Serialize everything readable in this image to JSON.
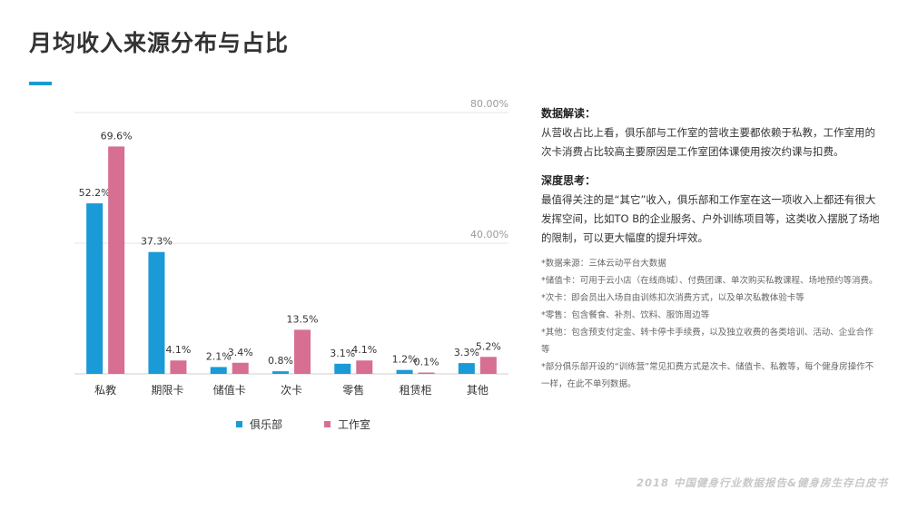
{
  "page": {
    "title": "月均收入来源分布与占比",
    "footer": "2018 中国健身行业数据报告&健身房生存白皮书"
  },
  "colors": {
    "accent": "#1a9ad6",
    "club": "#1a9ad6",
    "studio": "#d66f91",
    "gridline": "#e6e6e6",
    "axis_label": "#9a9a9a"
  },
  "chart_data": {
    "type": "bar",
    "categories": [
      "私教",
      "期限卡",
      "储值卡",
      "次卡",
      "零售",
      "租赁柜",
      "其他"
    ],
    "series": [
      {
        "name": "俱乐部",
        "values": [
          52.2,
          37.3,
          2.1,
          0.8,
          3.1,
          1.2,
          3.3
        ]
      },
      {
        "name": "工作室",
        "values": [
          69.6,
          4.1,
          3.4,
          13.5,
          4.1,
          0.1,
          5.2
        ]
      }
    ],
    "value_labels": [
      [
        "52.2%",
        "37.3%",
        "2.1%",
        "0.8%",
        "3.1%",
        "1.2%",
        "3.3%"
      ],
      [
        "69.6%",
        "4.1%",
        "3.4%",
        "13.5%",
        "4.1%",
        "0.1%",
        "5.2%"
      ]
    ],
    "y_ticks": [
      40,
      80
    ],
    "y_tick_labels": [
      "40.00%",
      "80.00%"
    ],
    "ylim": [
      0,
      80
    ],
    "grid": true,
    "legend_position": "bottom"
  },
  "panel": {
    "interpret_title": "数据解读：",
    "interpret_body": "从营收占比上看，俱乐部与工作室的营收主要都依赖于私教，工作室用的次卡消费占比较高主要原因是工作室团体课使用按次约课与扣费。",
    "think_title": "深度思考：",
    "think_body": "最值得关注的是“其它”收入，俱乐部和工作室在这一项收入上都还有很大发挥空间，比如TO B的企业服务、户外训练项目等，这类收入摆脱了场地的限制，可以更大幅度的提升坪效。",
    "notes": [
      "*数据来源：三体云动平台大数据",
      "*储值卡：可用于云小店（在线商城）、付费团课、单次购买私教课程、场地预约等消费。",
      "*次卡：即会员出入场自由训练扣次消费方式，以及单次私教体验卡等",
      "*零售：包含餐食、补剂、饮料、服饰周边等",
      "*其他：包含预支付定金、转卡停卡手续费，以及独立收费的各类培训、活动、企业合作等",
      "*部分俱乐部开设的“训练营”常见扣费方式是次卡、储值卡、私教等，每个健身房操作不一样，在此不单列数据。"
    ]
  }
}
